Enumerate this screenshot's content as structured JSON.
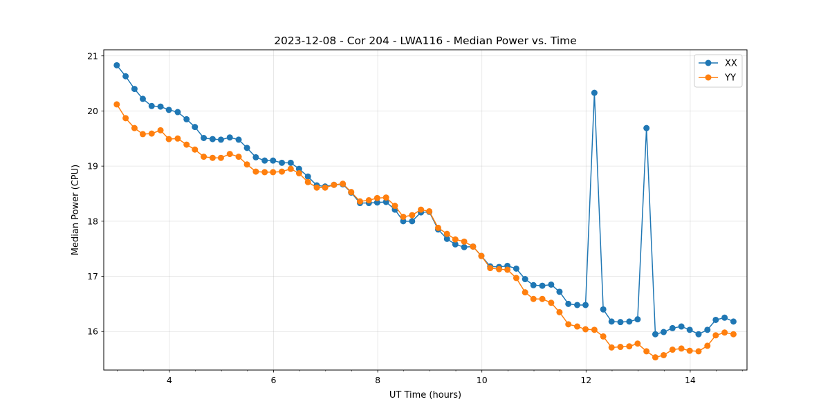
{
  "chart_data": {
    "type": "line",
    "title": "2023-12-08 - Cor 204 - LWA116 - Median Power vs. Time",
    "xlabel": "UT Time (hours)",
    "ylabel": "Median Power (CPU)",
    "xlim": [
      2.74,
      15.09
    ],
    "ylim": [
      15.3,
      21.11
    ],
    "xticks": [
      4,
      6,
      8,
      10,
      12,
      14
    ],
    "xtick_labels": [
      "4",
      "6",
      "8",
      "10",
      "12",
      "14"
    ],
    "yticks": [
      16,
      17,
      18,
      19,
      20,
      21
    ],
    "ytick_labels": [
      "16",
      "17",
      "18",
      "19",
      "20",
      "21"
    ],
    "x_minor_step": 0.5,
    "grid": true,
    "legend_position": "top-right",
    "x": [
      2.99,
      3.16,
      3.33,
      3.49,
      3.66,
      3.83,
      3.99,
      4.16,
      4.33,
      4.49,
      4.66,
      4.83,
      4.99,
      5.16,
      5.33,
      5.49,
      5.66,
      5.83,
      5.99,
      6.16,
      6.33,
      6.49,
      6.66,
      6.83,
      6.99,
      7.16,
      7.33,
      7.49,
      7.66,
      7.83,
      7.99,
      8.16,
      8.33,
      8.49,
      8.66,
      8.83,
      8.99,
      9.16,
      9.33,
      9.49,
      9.66,
      9.83,
      9.99,
      10.16,
      10.33,
      10.49,
      10.66,
      10.83,
      10.99,
      11.16,
      11.33,
      11.49,
      11.66,
      11.83,
      11.99,
      12.16,
      12.33,
      12.49,
      12.66,
      12.83,
      12.99,
      13.16,
      13.33,
      13.49,
      13.66,
      13.83,
      13.99,
      14.16,
      14.33,
      14.49,
      14.66,
      14.83
    ],
    "series": [
      {
        "name": "XX",
        "color": "#1f77b4",
        "values": [
          20.83,
          20.63,
          20.4,
          20.22,
          20.09,
          20.08,
          20.02,
          19.98,
          19.85,
          19.71,
          19.51,
          19.49,
          19.48,
          19.52,
          19.48,
          19.33,
          19.16,
          19.1,
          19.1,
          19.06,
          19.06,
          18.95,
          18.81,
          18.65,
          18.63,
          18.66,
          18.67,
          18.52,
          18.33,
          18.33,
          18.34,
          18.35,
          18.21,
          18.0,
          18.0,
          18.16,
          18.17,
          17.85,
          17.68,
          17.58,
          17.53,
          17.54,
          17.37,
          17.18,
          17.17,
          17.19,
          17.14,
          16.95,
          16.84,
          16.83,
          16.85,
          16.72,
          16.5,
          16.48,
          16.48,
          20.33,
          16.4,
          16.18,
          16.17,
          16.18,
          16.22,
          19.69,
          15.95,
          15.99,
          16.06,
          16.09,
          16.03,
          15.95,
          16.03,
          16.21,
          16.25,
          16.18
        ]
      },
      {
        "name": "YY",
        "color": "#ff7f0e",
        "values": [
          20.12,
          19.87,
          19.69,
          19.58,
          19.59,
          19.65,
          19.49,
          19.5,
          19.39,
          19.3,
          19.17,
          19.15,
          19.15,
          19.22,
          19.17,
          19.03,
          18.9,
          18.89,
          18.89,
          18.9,
          18.95,
          18.87,
          18.71,
          18.61,
          18.61,
          18.66,
          18.68,
          18.53,
          18.36,
          18.38,
          18.42,
          18.43,
          18.28,
          18.08,
          18.11,
          18.21,
          18.18,
          17.88,
          17.77,
          17.67,
          17.63,
          17.54,
          17.37,
          17.15,
          17.13,
          17.12,
          16.97,
          16.71,
          16.59,
          16.59,
          16.52,
          16.35,
          16.13,
          16.09,
          16.04,
          16.03,
          15.91,
          15.71,
          15.72,
          15.73,
          15.78,
          15.64,
          15.53,
          15.57,
          15.67,
          15.69,
          15.65,
          15.64,
          15.74,
          15.93,
          15.98,
          15.95
        ]
      }
    ]
  }
}
